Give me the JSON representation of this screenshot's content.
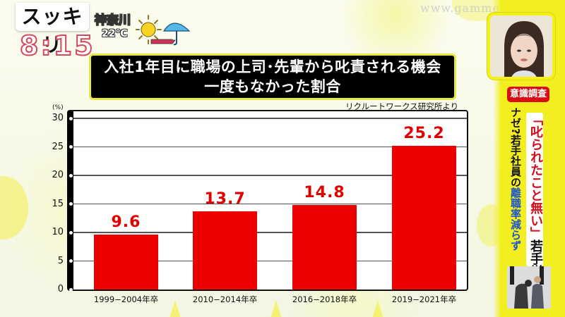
{
  "show": {
    "logo_text": "スッキリ",
    "clock": "8:15",
    "weather": {
      "location": "神奈川",
      "temperature": "22℃",
      "icons": [
        "sun-icon",
        "arrow-right-icon",
        "umbrella-icon"
      ]
    },
    "watermark": "www.gamme.com.tw"
  },
  "title": {
    "line1": "入社1年目に職場の上司･先輩から叱責される機会",
    "line2": "一度もなかった割合"
  },
  "source": "リクルートワークス研究所より",
  "chart_data": {
    "type": "bar",
    "title": "入社1年目に職場の上司･先輩から叱責される機会 一度もなかった割合",
    "categories": [
      "1999−2004年卒",
      "2010−2014年卒",
      "2016−2018年卒",
      "2019−2021年卒"
    ],
    "values": [
      9.6,
      13.7,
      14.8,
      25.2
    ],
    "value_labels": [
      "9.6",
      "13.7",
      "14.8",
      "25.2"
    ],
    "xlabel": "",
    "ylabel": "(%)",
    "ylim": [
      0,
      30
    ],
    "yticks": [
      0,
      5,
      10,
      15,
      20,
      25,
      30
    ],
    "ytick_labels": [
      "0",
      "5",
      "10",
      "15",
      "20",
      "25",
      "30"
    ],
    "grid": true,
    "legend": null,
    "bar_color": "#ee0000",
    "label_color": "#e00000",
    "annotation": "リクルートワークス研究所より"
  },
  "side_panel": {
    "tag": "意識調査",
    "headline_left_parts": [
      {
        "text": "ナゼ?若手社員の",
        "color": "#111111"
      },
      {
        "text": "離職率減らず",
        "color": "#1b55c7"
      }
    ],
    "headline_right_parts": [
      {
        "text": "「叱られたこと無い」",
        "color": "#d0101e"
      },
      {
        "text": "若手増加",
        "color": "#111111"
      }
    ],
    "accent_color": "#f3ee1f",
    "tag_color": "#d80e14"
  }
}
